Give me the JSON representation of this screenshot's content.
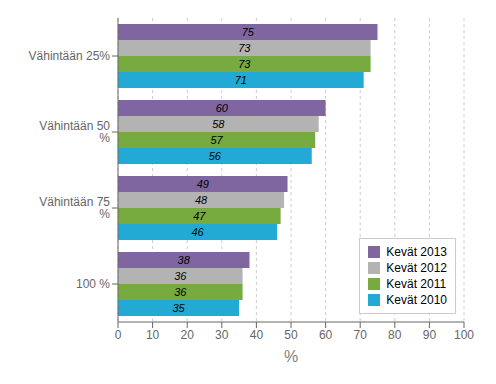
{
  "chart_data": {
    "type": "bar",
    "orientation": "horizontal",
    "categories": [
      "Vähintään 25%",
      "Vähintään 50 %",
      "Vähintään 75 %",
      "100 %"
    ],
    "series": [
      {
        "name": "Kevät 2013",
        "values": [
          75,
          60,
          49,
          38
        ],
        "color": "#7f66a0"
      },
      {
        "name": "Kevät 2012",
        "values": [
          73,
          58,
          48,
          36
        ],
        "color": "#b3b3b3"
      },
      {
        "name": "Kevät 2011",
        "values": [
          73,
          57,
          47,
          36
        ],
        "color": "#77ab3f"
      },
      {
        "name": "Kevät 2010",
        "values": [
          71,
          56,
          46,
          35
        ],
        "color": "#22aad4"
      }
    ],
    "xlim": [
      0,
      100
    ],
    "xticks": [
      0,
      10,
      20,
      30,
      40,
      50,
      60,
      70,
      80,
      90,
      100
    ],
    "xlabel": "%",
    "grid": true,
    "legend": "lower right",
    "data_labels": true
  }
}
